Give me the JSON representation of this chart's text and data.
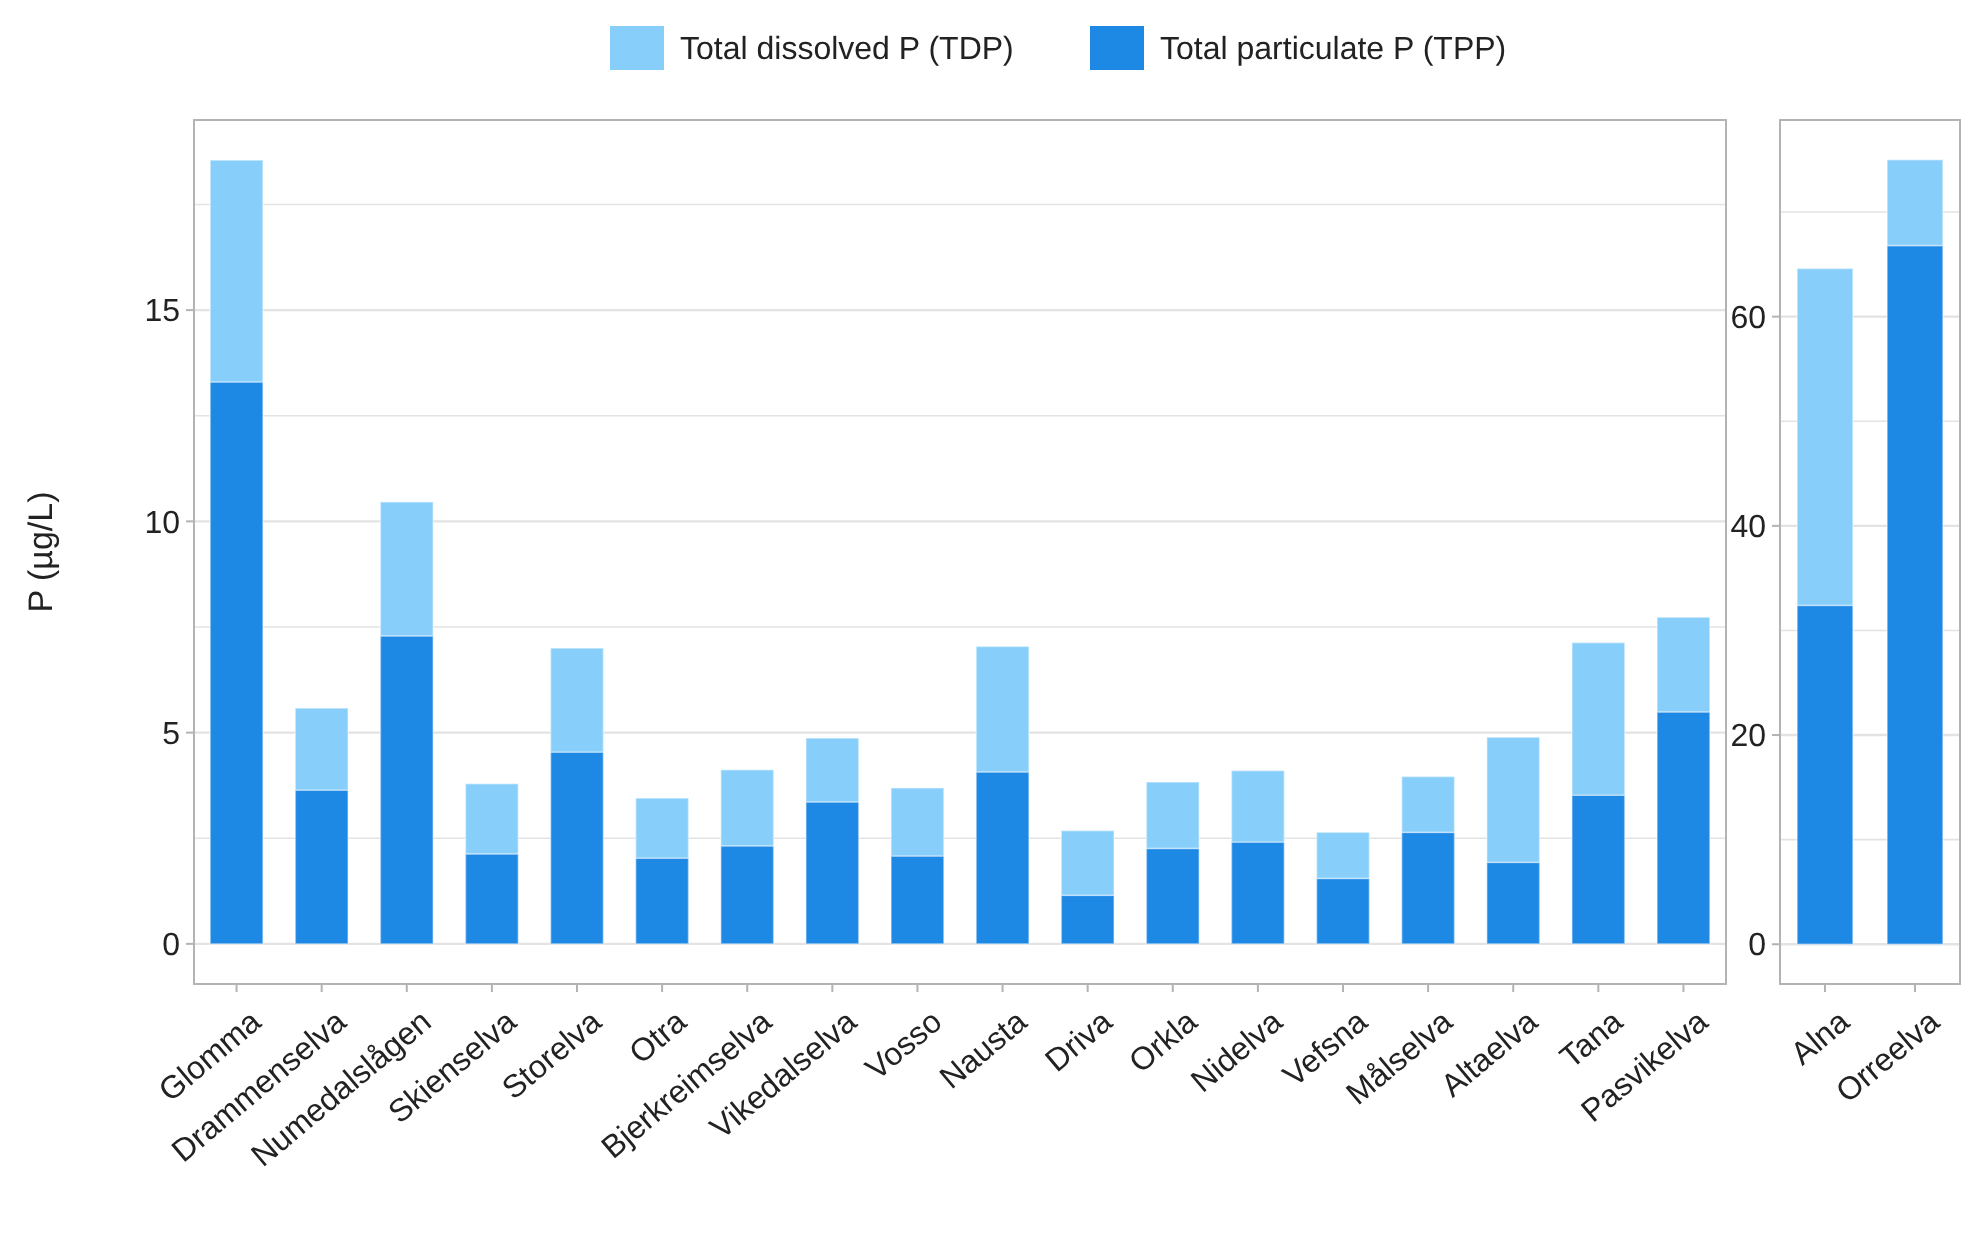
{
  "chart_data": [
    {
      "type": "bar",
      "stacked": true,
      "ylabel": "P (µg/L)",
      "legend": "top",
      "grid": "y",
      "categories": [
        "Glomma",
        "Drammenselva",
        "Numedalslågen",
        "Skienselva",
        "Storelva",
        "Otra",
        "Bjerkreimselva",
        "Vikedalselva",
        "Vosso",
        "Nausta",
        "Driva",
        "Orkla",
        "Nidelva",
        "Vefsna",
        "Målselva",
        "Altaelva",
        "Tana",
        "Pasvikelva"
      ],
      "series": [
        {
          "name": "Total particulate P (TPP)",
          "color": "#1e88e5",
          "values": [
            13.3,
            3.64,
            7.29,
            2.13,
            4.54,
            2.03,
            2.32,
            3.36,
            2.08,
            4.07,
            1.15,
            2.26,
            2.41,
            1.55,
            2.64,
            1.93,
            3.52,
            5.49
          ]
        },
        {
          "name": "Total dissolved P (TDP)",
          "color": "#87cefa",
          "values": [
            5.25,
            1.94,
            3.17,
            1.66,
            2.46,
            1.42,
            1.8,
            1.51,
            1.61,
            2.97,
            1.53,
            1.57,
            1.69,
            1.09,
            1.32,
            2.96,
            3.61,
            2.24
          ]
        }
      ],
      "ylim": [
        -0.95,
        19.5
      ],
      "yticks": [
        0,
        {
          "value": 2.5,
          "label": null
        },
        5,
        {
          "value": 7.5,
          "label": null
        },
        10,
        {
          "value": 12.5,
          "label": null
        },
        15,
        {
          "value": 17.5,
          "label": null
        }
      ]
    },
    {
      "type": "bar",
      "stacked": true,
      "grid": "y",
      "legend": false,
      "categories": [
        "Alna",
        "Orreelva"
      ],
      "series": [
        {
          "color": "#1e88e5",
          "values": [
            32.4,
            66.8
          ]
        },
        {
          "color": "#87cefa",
          "values": [
            32.2,
            8.2
          ]
        }
      ],
      "ylim": [
        -3.8,
        78.8
      ],
      "yticks": [
        0,
        {
          "value": 10,
          "label": null
        },
        20,
        {
          "value": 30,
          "label": null
        },
        40,
        {
          "value": 50,
          "label": null
        },
        60,
        {
          "value": 70,
          "label": null
        }
      ]
    }
  ]
}
